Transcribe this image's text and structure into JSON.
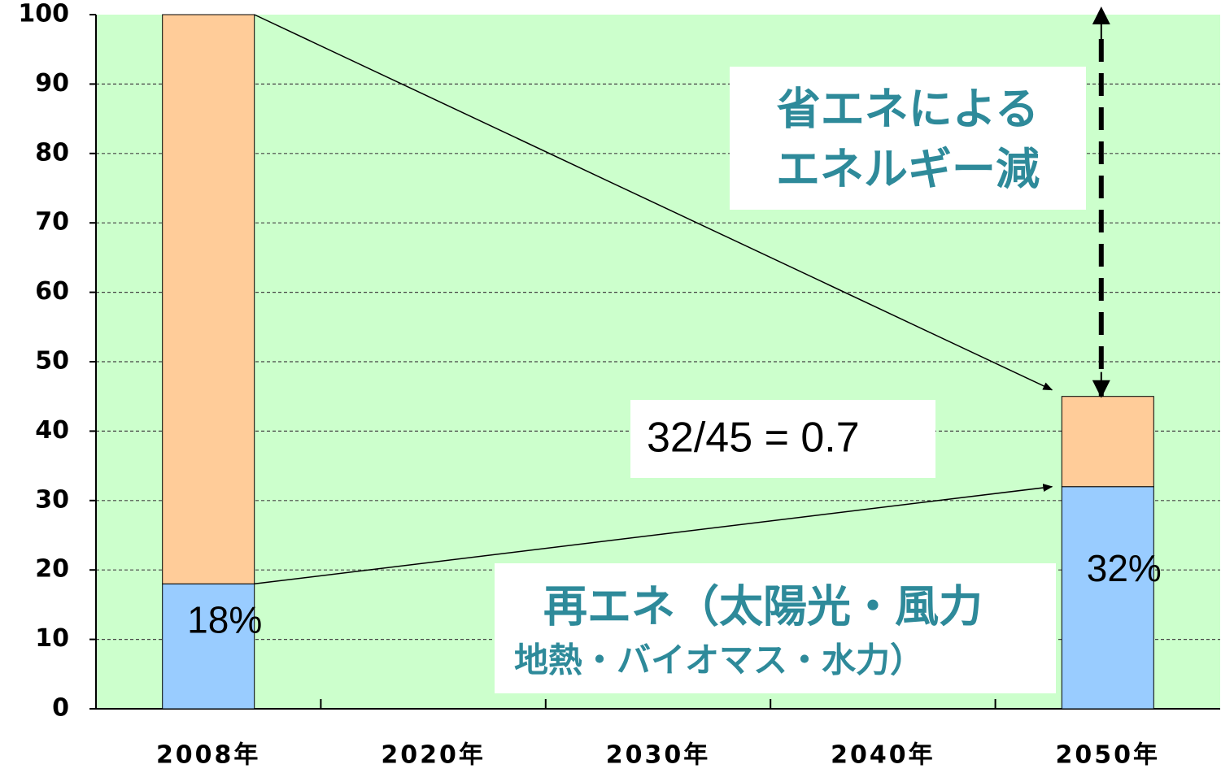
{
  "chart_data": {
    "type": "bar",
    "stacked": true,
    "categories": [
      "2008年",
      "2020年",
      "2030年",
      "2040年",
      "2050年"
    ],
    "series": [
      {
        "color": "#99ccff",
        "values": [
          18,
          null,
          null,
          null,
          32
        ],
        "value_labels": [
          "18%",
          null,
          null,
          null,
          "32%"
        ]
      },
      {
        "color": "#ffcc99",
        "values": [
          82,
          null,
          null,
          null,
          13
        ]
      }
    ],
    "ylim": [
      0,
      100
    ],
    "yticks": [
      0,
      10,
      20,
      30,
      40,
      50,
      60,
      70,
      80,
      90,
      100
    ],
    "grid": true,
    "background": "#ccffcc",
    "annotations": [
      {
        "lines": [
          "省エネによる",
          "エネルギー減"
        ]
      },
      {
        "lines": [
          "32/45 = 0.7"
        ]
      },
      {
        "lines": [
          "再エネ（太陽光・風力",
          "地熱・バイオマス・水力）"
        ]
      }
    ]
  }
}
